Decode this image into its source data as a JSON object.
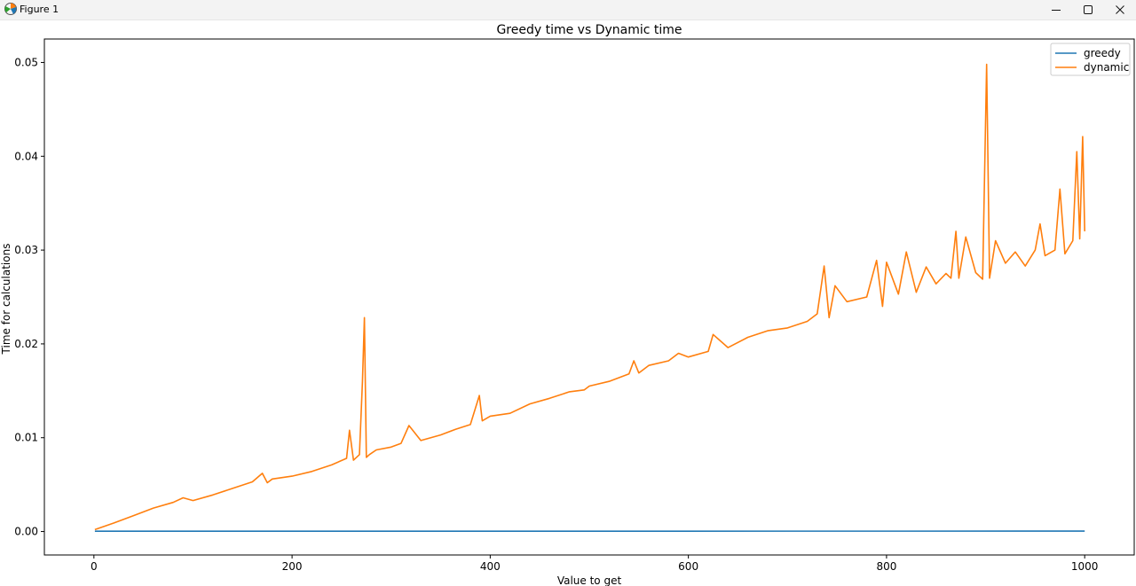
{
  "window": {
    "title": "Figure 1",
    "app_icon": "matplotlib-icon",
    "controls": [
      "minimize-icon",
      "maximize-icon",
      "close-icon"
    ]
  },
  "chart_data": {
    "type": "line",
    "title": "Greedy time vs Dynamic time",
    "xlabel": "Value to get",
    "ylabel": "Time for calculations",
    "xlim": [
      -50,
      1050
    ],
    "ylim": [
      -0.0025,
      0.0525
    ],
    "xticks": [
      0,
      200,
      400,
      600,
      800,
      1000
    ],
    "yticks": [
      0.0,
      0.01,
      0.02,
      0.03,
      0.04,
      0.05
    ],
    "ytick_labels": [
      "0.00",
      "0.01",
      "0.02",
      "0.03",
      "0.04",
      "0.05"
    ],
    "grid": false,
    "legend_position": "top-right",
    "series": [
      {
        "name": "greedy",
        "color": "#1f77b4",
        "x": [
          1,
          1000
        ],
        "values": [
          3e-05,
          4e-05
        ]
      },
      {
        "name": "dynamic",
        "color": "#ff7f0e",
        "x": [
          1,
          20,
          40,
          60,
          80,
          90,
          100,
          120,
          140,
          160,
          170,
          175,
          180,
          200,
          220,
          240,
          255,
          258,
          262,
          268,
          271,
          273,
          275,
          278,
          285,
          300,
          310,
          318,
          330,
          350,
          365,
          380,
          389,
          392,
          400,
          420,
          440,
          460,
          480,
          495,
          500,
          520,
          540,
          545,
          550,
          560,
          580,
          590,
          600,
          620,
          625,
          640,
          660,
          680,
          700,
          720,
          730,
          737,
          742,
          748,
          760,
          780,
          790,
          796,
          800,
          812,
          820,
          830,
          840,
          850,
          860,
          865,
          870,
          873,
          880,
          890,
          897,
          901,
          904,
          910,
          920,
          930,
          940,
          950,
          955,
          960,
          970,
          975,
          980,
          988,
          992,
          995,
          998,
          1000
        ],
        "values": [
          0.0002,
          0.0009,
          0.0017,
          0.0025,
          0.0031,
          0.0036,
          0.0033,
          0.0039,
          0.0046,
          0.0053,
          0.0062,
          0.0052,
          0.0056,
          0.0059,
          0.0064,
          0.0071,
          0.0078,
          0.0108,
          0.0076,
          0.0082,
          0.016,
          0.0228,
          0.0079,
          0.0082,
          0.0087,
          0.009,
          0.0094,
          0.0113,
          0.0097,
          0.0103,
          0.0109,
          0.0114,
          0.0145,
          0.0118,
          0.0123,
          0.0126,
          0.0136,
          0.0142,
          0.0149,
          0.0151,
          0.0155,
          0.016,
          0.0168,
          0.0182,
          0.0169,
          0.0177,
          0.0182,
          0.019,
          0.0186,
          0.0192,
          0.021,
          0.0196,
          0.0207,
          0.0214,
          0.0217,
          0.0224,
          0.0232,
          0.0283,
          0.0228,
          0.0262,
          0.0245,
          0.025,
          0.0289,
          0.024,
          0.0287,
          0.0253,
          0.0298,
          0.0255,
          0.0282,
          0.0264,
          0.0275,
          0.027,
          0.032,
          0.027,
          0.0314,
          0.0276,
          0.0269,
          0.0498,
          0.027,
          0.031,
          0.0286,
          0.0298,
          0.0283,
          0.03,
          0.0328,
          0.0294,
          0.03,
          0.0365,
          0.0296,
          0.031,
          0.0405,
          0.0312,
          0.0421,
          0.032
        ]
      }
    ]
  }
}
